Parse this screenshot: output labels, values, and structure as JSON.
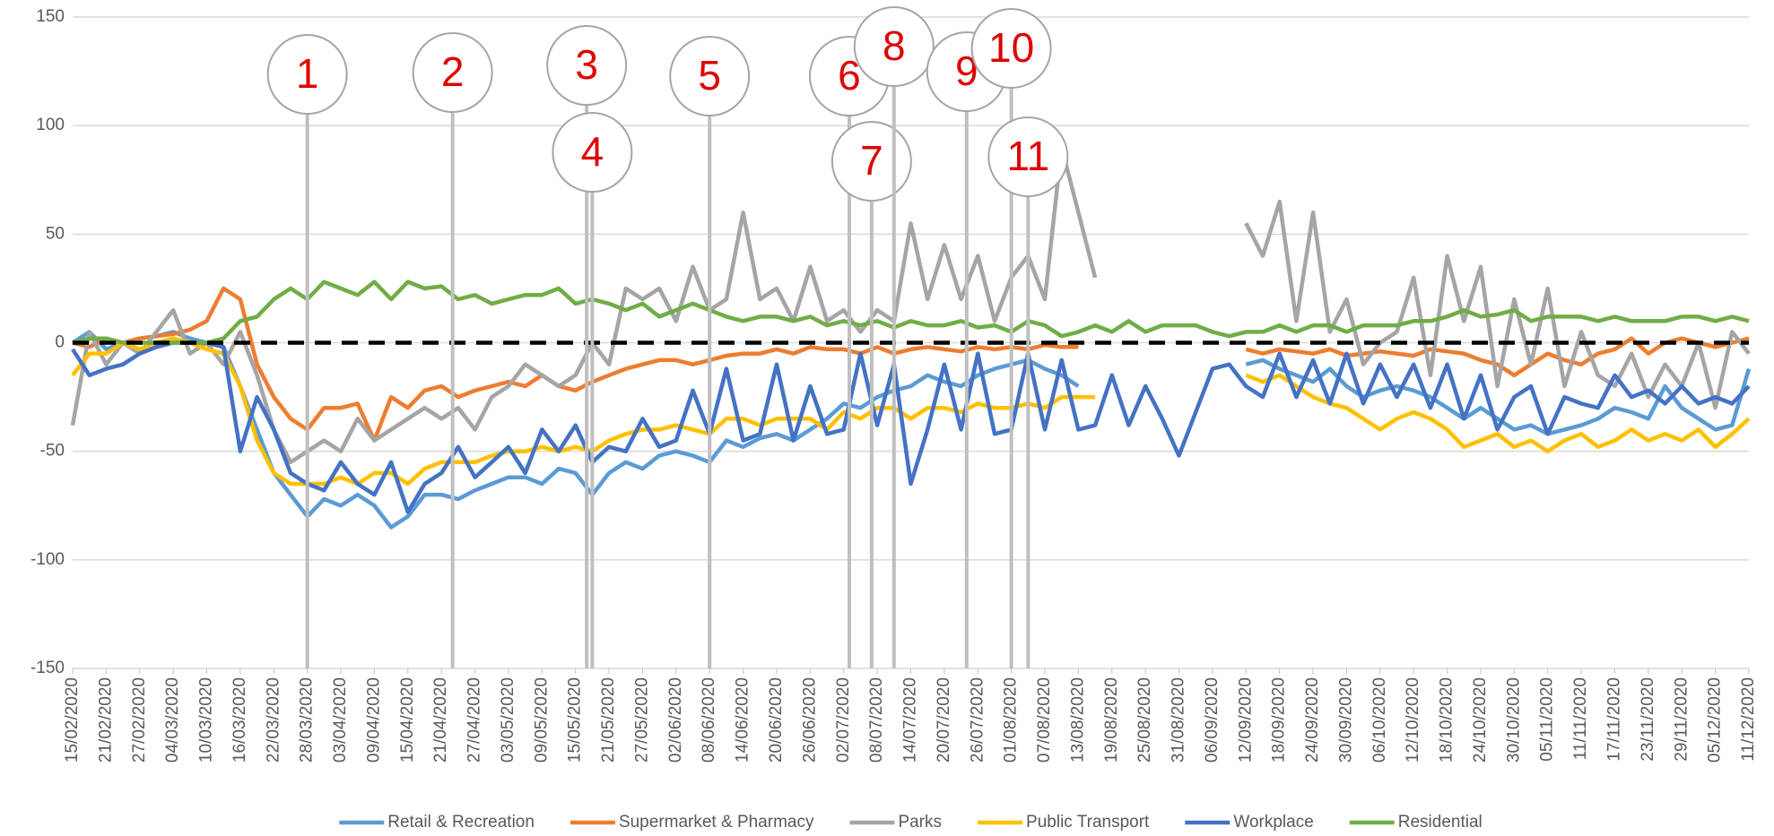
{
  "chart_data": {
    "type": "line",
    "x": [
      "15/02/2020",
      "18/02/2020",
      "21/02/2020",
      "24/02/2020",
      "27/02/2020",
      "01/03/2020",
      "04/03/2020",
      "07/03/2020",
      "10/03/2020",
      "13/03/2020",
      "16/03/2020",
      "19/03/2020",
      "22/03/2020",
      "25/03/2020",
      "28/03/2020",
      "31/03/2020",
      "03/04/2020",
      "06/04/2020",
      "09/04/2020",
      "12/04/2020",
      "15/04/2020",
      "18/04/2020",
      "21/04/2020",
      "24/04/2020",
      "27/04/2020",
      "30/04/2020",
      "03/05/2020",
      "06/05/2020",
      "09/05/2020",
      "12/05/2020",
      "15/05/2020",
      "18/05/2020",
      "21/05/2020",
      "24/05/2020",
      "27/05/2020",
      "30/05/2020",
      "02/06/2020",
      "05/06/2020",
      "08/06/2020",
      "11/06/2020",
      "14/06/2020",
      "17/06/2020",
      "20/06/2020",
      "23/06/2020",
      "26/06/2020",
      "29/06/2020",
      "02/07/2020",
      "05/07/2020",
      "08/07/2020",
      "11/07/2020",
      "14/07/2020",
      "17/07/2020",
      "20/07/2020",
      "23/07/2020",
      "26/07/2020",
      "29/07/2020",
      "01/08/2020",
      "04/08/2020",
      "07/08/2020",
      "10/08/2020",
      "13/08/2020",
      "16/08/2020",
      "19/08/2020",
      "22/08/2020",
      "25/08/2020",
      "28/08/2020",
      "31/08/2020",
      "03/09/2020",
      "06/09/2020",
      "09/09/2020",
      "12/09/2020",
      "15/09/2020",
      "18/09/2020",
      "21/09/2020",
      "24/09/2020",
      "27/09/2020",
      "30/09/2020",
      "03/10/2020",
      "06/10/2020",
      "09/10/2020",
      "12/10/2020",
      "15/10/2020",
      "18/10/2020",
      "21/10/2020",
      "24/10/2020",
      "27/10/2020",
      "30/10/2020",
      "02/11/2020",
      "05/11/2020",
      "08/11/2020",
      "11/11/2020",
      "14/11/2020",
      "17/11/2020",
      "20/11/2020",
      "23/11/2020",
      "26/11/2020",
      "29/11/2020",
      "02/12/2020",
      "05/12/2020",
      "08/12/2020",
      "11/12/2020"
    ],
    "series": [
      {
        "name": "Retail & Recreation",
        "color": "#5b9bd5",
        "values": [
          0,
          5,
          -3,
          0,
          2,
          3,
          5,
          2,
          0,
          -2,
          -20,
          -40,
          -60,
          -70,
          -80,
          -72,
          -75,
          -70,
          -75,
          -85,
          -80,
          -70,
          -70,
          -72,
          -68,
          -65,
          -62,
          -62,
          -65,
          -58,
          -60,
          -70,
          -60,
          -55,
          -58,
          -52,
          -50,
          -52,
          -55,
          -45,
          -48,
          -44,
          -42,
          -45,
          -40,
          -35,
          -28,
          -30,
          -25,
          -22,
          -20,
          -15,
          -18,
          -20,
          -15,
          -12,
          -10,
          -8,
          -12,
          -15,
          -20,
          null,
          null,
          null,
          null,
          null,
          null,
          null,
          null,
          null,
          -10,
          -8,
          -12,
          -15,
          -18,
          -12,
          -20,
          -25,
          -22,
          -20,
          -22,
          -25,
          -30,
          -35,
          -30,
          -35,
          -40,
          -38,
          -42,
          -40,
          -38,
          -35,
          -30,
          -32,
          -35,
          -20,
          -30,
          -35,
          -40,
          -38,
          -12
        ]
      },
      {
        "name": "Supermarket & Pharmacy",
        "color": "#ed7d31",
        "values": [
          0,
          -2,
          2,
          0,
          2,
          3,
          4,
          6,
          10,
          25,
          20,
          -10,
          -25,
          -35,
          -40,
          -30,
          -30,
          -28,
          -45,
          -25,
          -30,
          -22,
          -20,
          -25,
          -22,
          -20,
          -18,
          -20,
          -15,
          -20,
          -22,
          -18,
          -15,
          -12,
          -10,
          -8,
          -8,
          -10,
          -8,
          -6,
          -5,
          -5,
          -3,
          -5,
          -2,
          -3,
          -3,
          -5,
          -2,
          -5,
          -3,
          -2,
          -3,
          -4,
          -2,
          -3,
          -2,
          -3,
          -1,
          -2,
          -2,
          null,
          null,
          null,
          null,
          null,
          null,
          null,
          null,
          null,
          -3,
          -5,
          -3,
          -4,
          -5,
          -3,
          -6,
          -5,
          -4,
          -5,
          -6,
          -3,
          -4,
          -5,
          -8,
          -10,
          -15,
          -10,
          -5,
          -8,
          -10,
          -5,
          -3,
          2,
          -5,
          0,
          2,
          0,
          -2,
          0,
          2
        ]
      },
      {
        "name": "Parks",
        "color": "#a5a5a5",
        "values": [
          -38,
          5,
          -10,
          0,
          -5,
          5,
          15,
          -5,
          0,
          -10,
          5,
          -15,
          -40,
          -55,
          -50,
          -45,
          -50,
          -35,
          -45,
          -40,
          -35,
          -30,
          -35,
          -30,
          -40,
          -25,
          -20,
          -10,
          -15,
          -20,
          -15,
          0,
          -10,
          25,
          20,
          25,
          10,
          35,
          15,
          20,
          60,
          20,
          25,
          10,
          35,
          10,
          15,
          5,
          15,
          10,
          55,
          20,
          45,
          20,
          40,
          10,
          30,
          40,
          20,
          90,
          60,
          30,
          null,
          null,
          null,
          null,
          null,
          null,
          null,
          null,
          55,
          40,
          65,
          10,
          60,
          5,
          20,
          -10,
          0,
          5,
          30,
          -15,
          40,
          10,
          35,
          -20,
          20,
          -10,
          25,
          -20,
          5,
          -15,
          -20,
          -5,
          -25,
          -10,
          -20,
          0,
          -30,
          5,
          -5
        ]
      },
      {
        "name": "Public Transport",
        "color": "#ffc000",
        "values": [
          -15,
          -5,
          -5,
          0,
          -3,
          0,
          2,
          0,
          -3,
          -5,
          -20,
          -45,
          -60,
          -65,
          -65,
          -65,
          -62,
          -65,
          -60,
          -60,
          -65,
          -58,
          -55,
          -55,
          -55,
          -52,
          -50,
          -50,
          -48,
          -50,
          -48,
          -50,
          -45,
          -42,
          -40,
          -40,
          -38,
          -40,
          -42,
          -35,
          -35,
          -38,
          -35,
          -35,
          -35,
          -40,
          -32,
          -35,
          -30,
          -30,
          -35,
          -30,
          -30,
          -32,
          -28,
          -30,
          -30,
          -28,
          -30,
          -25,
          -25,
          -25,
          null,
          null,
          null,
          null,
          null,
          null,
          null,
          null,
          -15,
          -18,
          -15,
          -20,
          -25,
          -28,
          -30,
          -35,
          -40,
          -35,
          -32,
          -35,
          -40,
          -48,
          -45,
          -42,
          -48,
          -45,
          -50,
          -45,
          -42,
          -48,
          -45,
          -40,
          -45,
          -42,
          -45,
          -40,
          -48,
          -42,
          -35
        ]
      },
      {
        "name": "Workplace",
        "color": "#4472c4",
        "values": [
          -3,
          -15,
          -12,
          -10,
          -5,
          -2,
          0,
          0,
          0,
          -2,
          -50,
          -25,
          -40,
          -60,
          -65,
          -68,
          -55,
          -65,
          -70,
          -55,
          -78,
          -65,
          -60,
          -48,
          -62,
          -55,
          -48,
          -60,
          -40,
          -50,
          -38,
          -55,
          -48,
          -50,
          -35,
          -48,
          -45,
          -22,
          -42,
          -12,
          -45,
          -42,
          -10,
          -45,
          -20,
          -42,
          -40,
          -5,
          -38,
          -10,
          -65,
          -40,
          -10,
          -40,
          -5,
          -42,
          -40,
          -5,
          -40,
          -8,
          -40,
          -38,
          -15,
          -38,
          -20,
          -35,
          -52,
          -32,
          -12,
          -10,
          -20,
          -25,
          -5,
          -25,
          -8,
          -28,
          -5,
          -28,
          -10,
          -25,
          -10,
          -30,
          -10,
          -35,
          -15,
          -40,
          -25,
          -20,
          -42,
          -25,
          -28,
          -30,
          -15,
          -25,
          -22,
          -28,
          -20,
          -28,
          -25,
          -28,
          -20
        ]
      },
      {
        "name": "Residential",
        "color": "#70ad47",
        "values": [
          0,
          2,
          2,
          0,
          0,
          0,
          0,
          0,
          0,
          2,
          10,
          12,
          20,
          25,
          20,
          28,
          25,
          22,
          28,
          20,
          28,
          25,
          26,
          20,
          22,
          18,
          20,
          22,
          22,
          25,
          18,
          20,
          18,
          15,
          18,
          12,
          15,
          18,
          15,
          12,
          10,
          12,
          12,
          10,
          12,
          8,
          10,
          8,
          10,
          7,
          10,
          8,
          8,
          10,
          7,
          8,
          5,
          10,
          8,
          3,
          5,
          8,
          5,
          10,
          5,
          8,
          8,
          8,
          5,
          3,
          5,
          5,
          8,
          5,
          8,
          8,
          5,
          8,
          8,
          8,
          10,
          10,
          12,
          15,
          12,
          13,
          15,
          10,
          12,
          12,
          12,
          10,
          12,
          10,
          10,
          10,
          12,
          12,
          10,
          12,
          10
        ]
      }
    ],
    "zero_line": 0,
    "xlim": [
      "15/02/2020",
      "11/12/2020"
    ],
    "xticks": [
      "15/02/2020",
      "21/02/2020",
      "27/02/2020",
      "04/03/2020",
      "10/03/2020",
      "16/03/2020",
      "22/03/2020",
      "28/03/2020",
      "03/04/2020",
      "09/04/2020",
      "15/04/2020",
      "21/04/2020",
      "27/04/2020",
      "03/05/2020",
      "09/05/2020",
      "15/05/2020",
      "21/05/2020",
      "27/05/2020",
      "02/06/2020",
      "08/06/2020",
      "14/06/2020",
      "20/06/2020",
      "26/06/2020",
      "02/07/2020",
      "08/07/2020",
      "14/07/2020",
      "20/07/2020",
      "26/07/2020",
      "01/08/2020",
      "07/08/2020",
      "13/08/2020",
      "19/08/2020",
      "25/08/2020",
      "31/08/2020",
      "06/09/2020",
      "12/09/2020",
      "18/09/2020",
      "24/09/2020",
      "30/09/2020",
      "06/10/2020",
      "12/10/2020",
      "18/10/2020",
      "24/10/2020",
      "30/10/2020",
      "05/11/2020",
      "11/11/2020",
      "17/11/2020",
      "23/11/2020",
      "29/11/2020",
      "05/12/2020",
      "11/12/2020"
    ],
    "ylim": [
      -150,
      150
    ],
    "yticks": [
      -150,
      -100,
      -50,
      0,
      50,
      100,
      150
    ],
    "grid": true,
    "legend": "bottom",
    "annotations": [
      {
        "label": "1",
        "x": "28/03/2020"
      },
      {
        "label": "2",
        "x": "23/04/2020"
      },
      {
        "label": "3",
        "x": "17/05/2020"
      },
      {
        "label": "4",
        "x": "18/05/2020"
      },
      {
        "label": "5",
        "x": "08/06/2020"
      },
      {
        "label": "6",
        "x": "03/07/2020"
      },
      {
        "label": "7",
        "x": "07/07/2020"
      },
      {
        "label": "8",
        "x": "11/07/2020"
      },
      {
        "label": "9",
        "x": "24/07/2020"
      },
      {
        "label": "10",
        "x": "01/08/2020"
      },
      {
        "label": "11",
        "x": "04/08/2020"
      }
    ]
  }
}
